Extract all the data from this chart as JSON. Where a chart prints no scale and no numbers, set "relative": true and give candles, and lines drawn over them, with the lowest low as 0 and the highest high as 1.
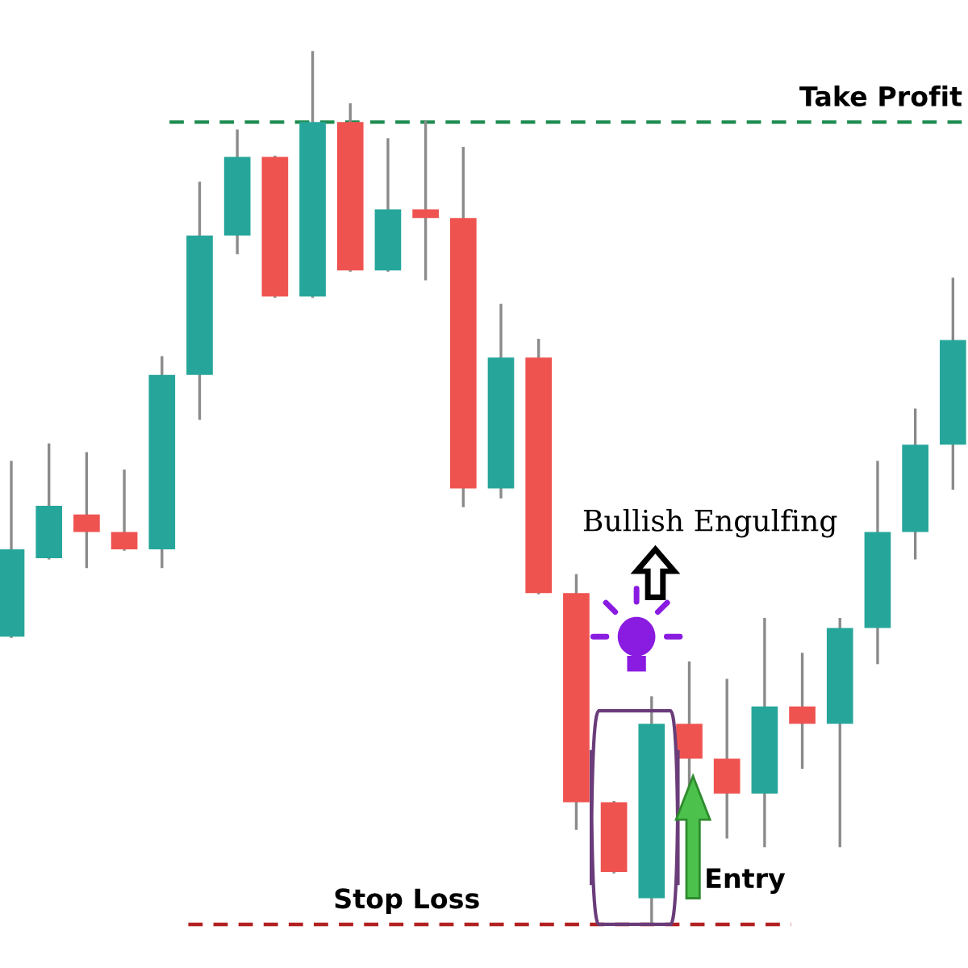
{
  "chart_data": {
    "type": "candlestick",
    "relative": true,
    "categories": [
      null,
      null,
      null,
      null,
      null,
      null,
      null,
      null,
      null,
      null,
      null,
      null,
      null,
      null,
      null,
      null,
      null,
      null,
      null,
      null,
      null,
      null,
      null,
      null,
      null,
      null
    ],
    "ohlc": [
      [
        0.33,
        0.53,
        0.33,
        0.43
      ],
      [
        0.42,
        0.55,
        0.42,
        0.48
      ],
      [
        0.47,
        0.54,
        0.41,
        0.45
      ],
      [
        0.45,
        0.52,
        0.43,
        0.43
      ],
      [
        0.43,
        0.65,
        0.41,
        0.63
      ],
      [
        0.63,
        0.85,
        0.58,
        0.79
      ],
      [
        0.79,
        0.91,
        0.77,
        0.88
      ],
      [
        0.88,
        0.88,
        0.72,
        0.72
      ],
      [
        0.72,
        1,
        0.72,
        0.92
      ],
      [
        0.92,
        0.94,
        0.75,
        0.75
      ],
      [
        0.75,
        0.9,
        0.75,
        0.82
      ],
      [
        0.82,
        0.92,
        0.74,
        0.81
      ],
      [
        0.81,
        0.89,
        0.48,
        0.5
      ],
      [
        0.5,
        0.71,
        0.49,
        0.65
      ],
      [
        0.65,
        0.67,
        0.38,
        0.38
      ],
      [
        0.38,
        0.4,
        0.11,
        0.14
      ],
      [
        0.14,
        0.14,
        0.06,
        0.06
      ],
      [
        0.03,
        0.26,
        0,
        0.23
      ],
      [
        0.23,
        0.3,
        0.16,
        0.19
      ],
      [
        0.19,
        0.28,
        0.1,
        0.15
      ],
      [
        0.15,
        0.35,
        0.09,
        0.25
      ],
      [
        0.25,
        0.31,
        0.18,
        0.23
      ],
      [
        0.23,
        0.35,
        0.09,
        0.34
      ],
      [
        0.34,
        0.53,
        0.3,
        0.45
      ],
      [
        0.45,
        0.59,
        0.42,
        0.55
      ],
      [
        0.55,
        0.74,
        0.5,
        0.67
      ]
    ],
    "colors": [
      "#26a69a",
      "#26a69a",
      "#ef5350",
      "#ef5350",
      "#26a69a",
      "#26a69a",
      "#26a69a",
      "#ef5350",
      "#26a69a",
      "#ef5350",
      "#26a69a",
      "#ef5350",
      "#ef5350",
      "#26a69a",
      "#ef5350",
      "#ef5350",
      "#ef5350",
      "#26a69a",
      "#ef5350",
      "#ef5350",
      "#26a69a",
      "#ef5350",
      "#26a69a",
      "#26a69a",
      "#26a69a",
      "#26a69a"
    ],
    "ref_lines": [
      {
        "axis": "y",
        "value": 0.92,
        "label": "Take Profit",
        "color": "#1e8c50",
        "line_style": "dashed"
      },
      {
        "axis": "y",
        "value": 0,
        "label": "Stop Loss",
        "color": "#b22222",
        "line_style": "dashed"
      }
    ],
    "annotations": [
      "Bullish Engulfing",
      "Entry"
    ]
  }
}
